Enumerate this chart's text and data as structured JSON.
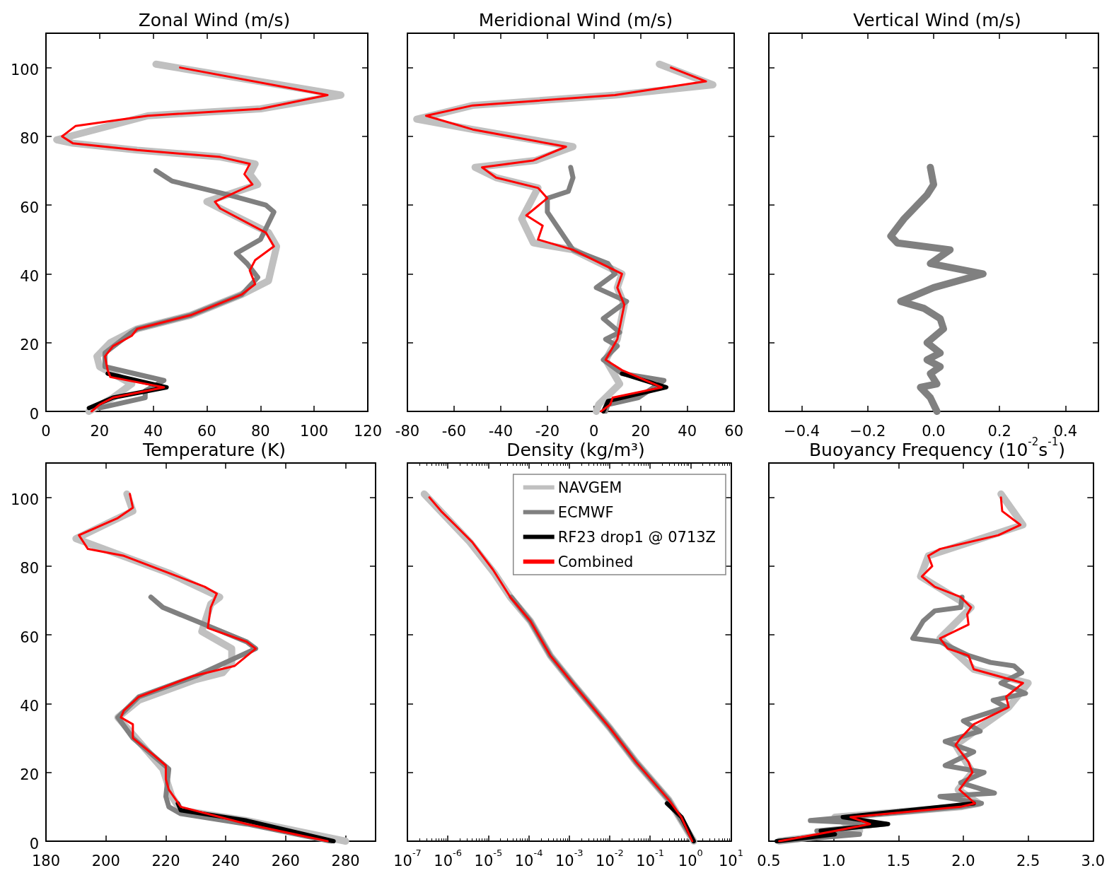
{
  "chart_data": [
    {
      "type": "line",
      "title": "Zonal Wind (m/s)",
      "xlim": [
        0,
        120
      ],
      "xticks": [
        0,
        20,
        40,
        60,
        80,
        100,
        120
      ],
      "ylim": [
        0,
        110
      ],
      "yticks": [
        0,
        20,
        40,
        60,
        80,
        100
      ],
      "series": [
        {
          "color": "#c0c0c0",
          "x": [
            41,
            110,
            80,
            38,
            4,
            10,
            34,
            65,
            78,
            76,
            79,
            60,
            65,
            83,
            86,
            83,
            73,
            54,
            34,
            24,
            19,
            20,
            32,
            25,
            16
          ],
          "values": [
            101,
            92,
            88,
            86,
            79,
            78,
            76,
            74,
            72,
            69,
            66,
            61,
            59,
            52,
            48,
            38,
            34,
            28,
            24,
            20,
            16,
            13,
            8,
            4,
            0
          ]
        },
        {
          "color": "#808080",
          "x": [
            41,
            47,
            68,
            82,
            85,
            80,
            71,
            75,
            79,
            73,
            54,
            34,
            32,
            22,
            22,
            44,
            37,
            37,
            20
          ],
          "values": [
            70,
            67,
            63,
            60,
            58,
            50,
            46,
            43,
            39,
            34,
            28,
            24,
            23,
            17,
            13,
            9,
            6,
            4,
            1
          ]
        },
        {
          "color": "#000000",
          "x": [
            23,
            45,
            25,
            16
          ],
          "values": [
            11,
            7,
            4,
            1
          ]
        },
        {
          "color": "#ff0000",
          "x": [
            50,
            105,
            80,
            38,
            11,
            6,
            10,
            34,
            65,
            76,
            74,
            77,
            63,
            65,
            82,
            85,
            78,
            76,
            78,
            73,
            54,
            34,
            32,
            25,
            22,
            23,
            24,
            44,
            25,
            20,
            17
          ],
          "values": [
            100,
            92,
            88,
            86,
            83,
            80,
            78,
            76,
            74,
            72,
            69,
            66,
            61,
            59,
            52,
            48,
            44,
            41,
            37,
            34,
            28,
            24,
            22,
            19,
            16,
            12,
            10,
            7,
            4,
            2,
            0
          ]
        }
      ]
    },
    {
      "type": "line",
      "title": "Meridional Wind (m/s)",
      "xlim": [
        -80,
        60
      ],
      "xticks": [
        -80,
        -60,
        -40,
        -20,
        0,
        20,
        40,
        60
      ],
      "ylim": [
        0,
        110
      ],
      "yticks": [
        0,
        20,
        40,
        60,
        80,
        100
      ],
      "tick_labels": "x",
      "series": [
        {
          "color": "#c0c0c0",
          "x": [
            28,
            51,
            9,
            -52,
            -76,
            -52,
            -9,
            -25,
            -51,
            -42,
            -24,
            -31,
            -26,
            -9,
            12,
            10,
            13,
            10,
            5,
            11,
            2,
            1
          ],
          "values": [
            101,
            95,
            92,
            89,
            85,
            82,
            77,
            73,
            71,
            68,
            65,
            56,
            49,
            47,
            40,
            36,
            31,
            21,
            15,
            8,
            2,
            0
          ]
        },
        {
          "color": "#808080",
          "x": [
            -10,
            -9,
            -11,
            -20,
            -20,
            -15,
            -9,
            6,
            9,
            1,
            14,
            4,
            11,
            5,
            10,
            4,
            12,
            30,
            19,
            6,
            5
          ],
          "values": [
            71,
            68,
            64,
            62,
            58,
            53,
            47,
            43,
            40,
            36,
            32,
            27,
            23,
            21,
            19,
            15,
            11,
            9,
            4,
            2,
            0
          ]
        },
        {
          "color": "#000000",
          "x": [
            12,
            31,
            6,
            4
          ],
          "values": [
            11,
            7,
            3,
            0
          ]
        },
        {
          "color": "#ff0000",
          "x": [
            33,
            48,
            9,
            -52,
            -72,
            -52,
            -12,
            -26,
            -48,
            -42,
            -24,
            -20,
            -29,
            -22,
            -24,
            -9,
            12,
            10,
            13,
            10,
            5,
            12,
            29,
            8,
            7,
            3
          ],
          "values": [
            100,
            96,
            92,
            89,
            86,
            82,
            77,
            73,
            71,
            68,
            65,
            62,
            57,
            54,
            50,
            47,
            40,
            36,
            31,
            21,
            15,
            12,
            7,
            4,
            2,
            0
          ]
        }
      ]
    },
    {
      "type": "line",
      "title": "Vertical Wind (m/s)",
      "xlim": [
        -0.5,
        0.5
      ],
      "xticks": [
        {
          "value": -0.4,
          "label": "−0.4"
        },
        {
          "value": -0.2,
          "label": "−0.2"
        },
        {
          "value": 0,
          "label": "0.0"
        },
        0.2,
        0.4
      ],
      "ylim": [
        0,
        110
      ],
      "yticks": [
        0,
        20,
        40,
        60,
        80,
        100
      ],
      "tick_labels": "x",
      "series": [
        {
          "color": "#808080",
          "x": [
            -0.01,
            0,
            -0.02,
            -0.09,
            -0.13,
            -0.11,
            0.05,
            -0.01,
            0.15,
            0,
            -0.1,
            -0.03,
            0.02,
            0.03,
            -0.02,
            0.02,
            -0.02,
            0.02,
            -0.01,
            0.01,
            -0.04,
            -0.01,
            0.01
          ],
          "values": [
            71,
            66,
            63,
            56,
            51,
            49,
            47,
            43,
            40,
            36,
            32,
            30,
            27,
            24,
            20,
            17,
            15,
            13,
            11,
            8,
            7,
            4,
            0
          ]
        }
      ]
    },
    {
      "type": "line",
      "title": "Temperature (K)",
      "xlim": [
        180,
        290
      ],
      "xticks": [
        180,
        200,
        220,
        240,
        260,
        280
      ],
      "ylim": [
        0,
        110
      ],
      "yticks": [
        0,
        20,
        40,
        60,
        80,
        100
      ],
      "series": [
        {
          "color": "#c0c0c0",
          "x": [
            207,
            209,
            190,
            221,
            238,
            235,
            232,
            242,
            242,
            239,
            230,
            211,
            204,
            208,
            219,
            222,
            225,
            247,
            280
          ],
          "values": [
            101,
            96,
            88,
            78,
            71,
            69,
            61,
            56,
            52,
            49,
            47,
            41,
            36,
            32,
            21,
            13,
            9,
            6,
            0
          ]
        },
        {
          "color": "#808080",
          "x": [
            215,
            219,
            233,
            247,
            250,
            230,
            211,
            204,
            209,
            221,
            220,
            221,
            225,
            247,
            275
          ],
          "values": [
            71,
            68,
            63,
            58,
            56,
            48,
            42,
            36,
            30,
            21,
            13,
            10,
            8,
            5,
            0
          ]
        },
        {
          "color": "#000000",
          "x": [
            224,
            225,
            247,
            276
          ],
          "values": [
            11,
            9,
            6,
            0
          ]
        },
        {
          "color": "#ff0000",
          "x": [
            208,
            209,
            204,
            191,
            194,
            206,
            221,
            233,
            237,
            235,
            234,
            247,
            250,
            243,
            229,
            211,
            206,
            205,
            209,
            209,
            216,
            220,
            220,
            221,
            225,
            247,
            274
          ],
          "values": [
            101,
            97,
            94,
            89,
            85,
            83,
            78,
            74,
            72,
            68,
            62,
            58,
            56,
            51,
            48,
            42,
            38,
            36,
            34,
            30,
            25,
            22,
            18,
            15,
            10,
            5,
            0
          ]
        }
      ]
    },
    {
      "type": "line",
      "title": "Density (kg/m³)",
      "log": "x",
      "legend": "top right",
      "xlim": [
        1e-07,
        10
      ],
      "xticks": [
        {
          "value": 1e-07,
          "label": "10$^{-7}$"
        },
        {
          "value": 1e-06,
          "label": "10$^{-6}$"
        },
        {
          "value": 1e-05,
          "label": "10$^{-5}$"
        },
        {
          "value": 0.0001,
          "label": "10$^{-4}$"
        },
        {
          "value": 0.001,
          "label": "10$^{-3}$"
        },
        {
          "value": 0.01,
          "label": "10$^{-2}$"
        },
        {
          "value": 0.1,
          "label": "10$^{-1}$"
        },
        {
          "value": 1,
          "label": "10$^{0}$"
        },
        {
          "value": 10,
          "label": "10$^{1}$"
        }
      ],
      "ylim": [
        0,
        110
      ],
      "yticks": [
        0,
        20,
        40,
        60,
        80,
        100
      ],
      "tick_labels": "x",
      "series": [
        {
          "name": "NAVGEM",
          "color": "#c0c0c0",
          "x": [
            2.6e-07,
            3.5e-06,
            1.4e-05,
            3.5e-05,
            0.00011,
            0.00034,
            0.0012,
            0.01,
            0.045,
            0.29,
            1.2
          ],
          "values": [
            101,
            87,
            78,
            71,
            64,
            54,
            46,
            33,
            23,
            12,
            0
          ]
        },
        {
          "name": "ECMWF",
          "color": "#808080",
          "x": [
            3.7e-05,
            0.00011,
            0.00034,
            0.0012,
            0.01,
            0.045,
            0.29,
            1.2
          ],
          "values": [
            71,
            64,
            54,
            46,
            33,
            23,
            12,
            0
          ]
        },
        {
          "name": "RF23 drop1 @ 0713Z",
          "color": "#000000",
          "x": [
            0.26,
            0.6,
            1.2
          ],
          "values": [
            11,
            7,
            0
          ]
        },
        {
          "name": "Combined",
          "color": "#ff0000",
          "x": [
            3.5e-07,
            6.8e-07,
            1.5e-06,
            4e-06,
            1.3e-05,
            3.5e-05,
            0.00011,
            0.00034,
            0.0012,
            0.01,
            0.045,
            0.29,
            0.59,
            1.1
          ],
          "values": [
            100,
            96,
            92,
            87,
            79,
            71,
            64,
            54,
            46,
            33,
            23,
            12,
            7,
            0
          ]
        }
      ]
    },
    {
      "type": "line",
      "title": "Buoyancy Frequency (10$^{-2}$s$^{-1}$)",
      "xlim": [
        0.5,
        3.0
      ],
      "xticks": [
        {
          "value": 0.5,
          "label": "0.5"
        },
        {
          "value": 1,
          "label": "1.0"
        },
        1.5,
        {
          "value": 2,
          "label": "2.0"
        },
        2.5,
        {
          "value": 3,
          "label": "3.0"
        }
      ],
      "ylim": [
        0,
        110
      ],
      "yticks": [
        0,
        20,
        40,
        60,
        80,
        100
      ],
      "tick_labels": "x",
      "series": [
        {
          "color": "#c0c0c0",
          "x": [
            2.29,
            2.46,
            1.73,
            1.67,
            2.06,
            1.82,
            2.08,
            2.5,
            2.35,
            1.94,
            2.07,
            1.96,
            2.12,
            1.98,
            1.01,
            1.2,
            0.58
          ],
          "values": [
            101,
            92,
            83,
            77,
            68,
            59,
            50,
            46,
            39,
            28,
            20,
            15,
            11,
            10,
            7,
            3,
            0
          ]
        },
        {
          "color": "#808080",
          "x": [
            1.99,
            1.98,
            1.78,
            1.69,
            1.61,
            1.82,
            2.04,
            2.21,
            2.39,
            2.45,
            2.29,
            2.48,
            2.23,
            2.33,
            2.0,
            2.13,
            1.86,
            2.08,
            1.86,
            2.16,
            1.98,
            2.24,
            1.82,
            2.14,
            1.98,
            0.82,
            1.4,
            0.87,
            1.2,
            0.58
          ],
          "values": [
            71,
            68,
            67,
            64,
            59,
            58,
            54,
            52,
            51,
            49,
            46,
            43,
            41,
            39,
            35,
            32,
            29,
            26,
            22,
            20,
            17,
            14,
            13,
            11,
            10,
            6,
            5,
            3,
            2,
            0
          ]
        },
        {
          "color": "#000000",
          "x": [
            2.08,
            1.07,
            1.42,
            0.9,
            1.01,
            0.56
          ],
          "values": [
            11,
            7,
            5,
            3,
            2,
            0
          ]
        },
        {
          "color": "#ff0000",
          "x": [
            2.29,
            2.3,
            2.44,
            2.27,
            1.82,
            1.73,
            1.76,
            1.68,
            1.78,
            1.98,
            2.06,
            2.03,
            2.04,
            1.82,
            1.88,
            2.04,
            2.08,
            2.46,
            2.33,
            2.35,
            2.08,
            1.98,
            1.94,
            2.04,
            2.07,
            1.97,
            2.09,
            1.98,
            1.13,
            1.28,
            1.01,
            0.58
          ],
          "values": [
            100,
            96,
            92,
            89,
            85,
            83,
            80,
            77,
            74,
            71,
            68,
            66,
            63,
            59,
            56,
            54,
            50,
            46,
            42,
            39,
            34,
            30,
            28,
            23,
            20,
            15,
            11,
            10,
            7,
            5,
            3,
            0
          ]
        }
      ]
    }
  ]
}
